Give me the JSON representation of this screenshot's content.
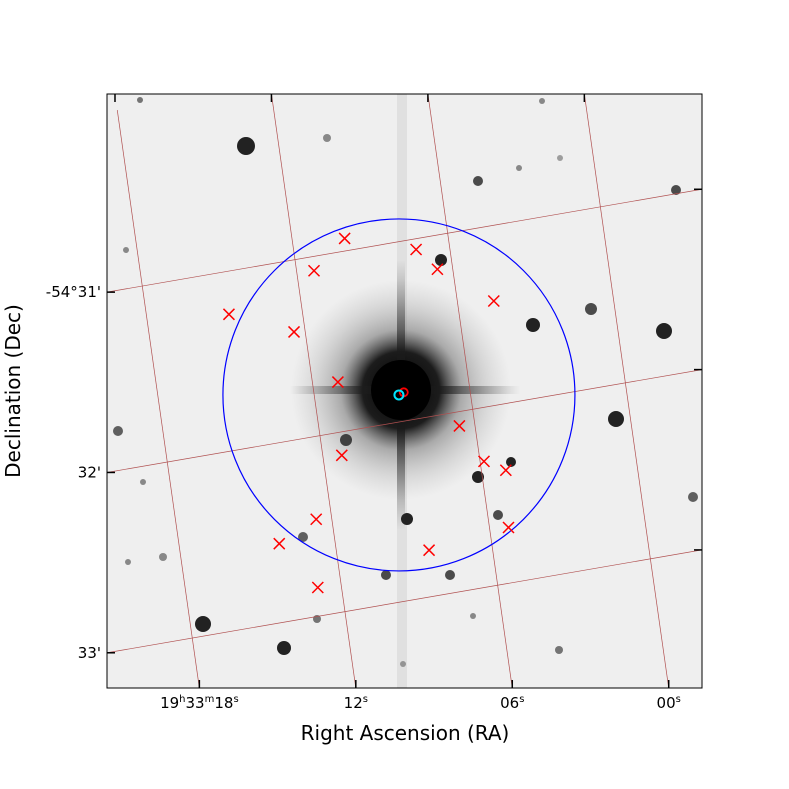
{
  "chart_data": {
    "type": "scatter",
    "xlabel": "Right Ascension (RA)",
    "ylabel": "Declination (Dec)",
    "x_ticks": [
      {
        "h": "19",
        "m": "33",
        "s": "18",
        "ra_s": 18
      },
      {
        "s": "12",
        "ra_s": 12
      },
      {
        "s": "06",
        "ra_s": 6
      },
      {
        "s": "00",
        "ra_s": 0
      }
    ],
    "y_ticks": [
      {
        "label": "-54°31'",
        "dec_arcmin": 31
      },
      {
        "label": "32'",
        "dec_arcmin": 32
      },
      {
        "label": "33'",
        "dec_arcmin": 33
      }
    ],
    "target": {
      "ra_s": 8.75,
      "dec_arcmin": 31.85
    },
    "search_radius_arcmin": 1.0,
    "markers": {
      "target_color": "#00e5ff",
      "match_color": "#ff0000",
      "circle_color": "#0000ff",
      "grid_color": "#b05050"
    },
    "match_point": {
      "ra_s": 8.55,
      "dec_arcmin": 31.84
    },
    "sources": [
      {
        "ra_s": 9.98,
        "dec_arcmin": 30.93
      },
      {
        "ra_s": 11.33,
        "dec_arcmin": 31.08
      },
      {
        "ra_s": 7.3,
        "dec_arcmin": 31.06
      },
      {
        "ra_s": 6.59,
        "dec_arcmin": 31.19
      },
      {
        "ra_s": 14.83,
        "dec_arcmin": 31.24
      },
      {
        "ra_s": 12.43,
        "dec_arcmin": 31.4
      },
      {
        "ra_s": 4.6,
        "dec_arcmin": 31.42
      },
      {
        "ra_s": 11.02,
        "dec_arcmin": 31.72
      },
      {
        "ra_s": 6.6,
        "dec_arcmin": 32.08
      },
      {
        "ra_s": 11.27,
        "dec_arcmin": 32.13
      },
      {
        "ra_s": 5.85,
        "dec_arcmin": 32.3
      },
      {
        "ra_s": 5.06,
        "dec_arcmin": 32.37
      },
      {
        "ra_s": 12.6,
        "dec_arcmin": 32.46
      },
      {
        "ra_s": 14.15,
        "dec_arcmin": 32.56
      },
      {
        "ra_s": 5.27,
        "dec_arcmin": 32.69
      },
      {
        "ra_s": 8.44,
        "dec_arcmin": 32.74
      },
      {
        "ra_s": 12.91,
        "dec_arcmin": 32.84
      }
    ]
  }
}
